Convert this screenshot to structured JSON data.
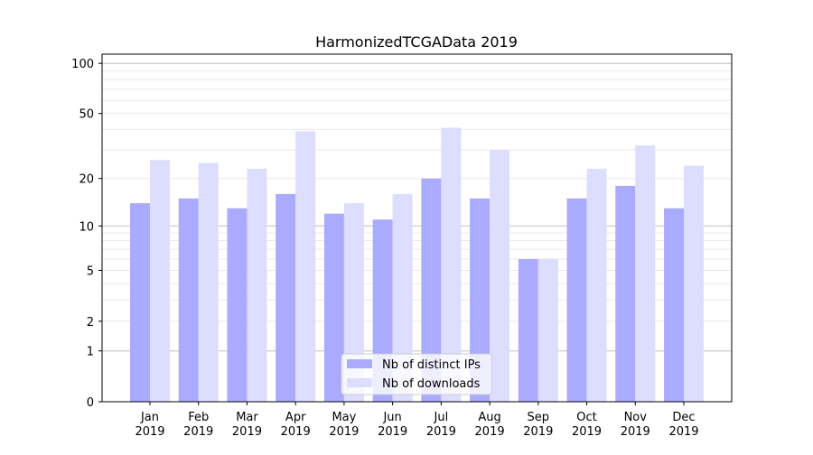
{
  "chart_data": {
    "type": "bar",
    "title": "HarmonizedTCGAData 2019",
    "xlabel": "",
    "ylabel": "",
    "yscale": "log10(y+1)",
    "ylim": [
      0,
      110
    ],
    "yticks": [
      0,
      1,
      2,
      5,
      10,
      20,
      50,
      100
    ],
    "categories": [
      "Jan\n2019",
      "Feb\n2019",
      "Mar\n2019",
      "Apr\n2019",
      "May\n2019",
      "Jun\n2019",
      "Jul\n2019",
      "Aug\n2019",
      "Sep\n2019",
      "Oct\n2019",
      "Nov\n2019",
      "Dec\n2019"
    ],
    "series": [
      {
        "name": "Nb of distinct IPs",
        "color": "#aaaaff",
        "values": [
          14,
          15,
          13,
          16,
          12,
          11,
          20,
          15,
          6,
          15,
          18,
          13
        ]
      },
      {
        "name": "Nb of downloads",
        "color": "#ddddff",
        "values": [
          26,
          25,
          23,
          39,
          14,
          16,
          41,
          30,
          6,
          23,
          32,
          24
        ]
      }
    ],
    "grid": true,
    "legend": "bottom-center"
  }
}
